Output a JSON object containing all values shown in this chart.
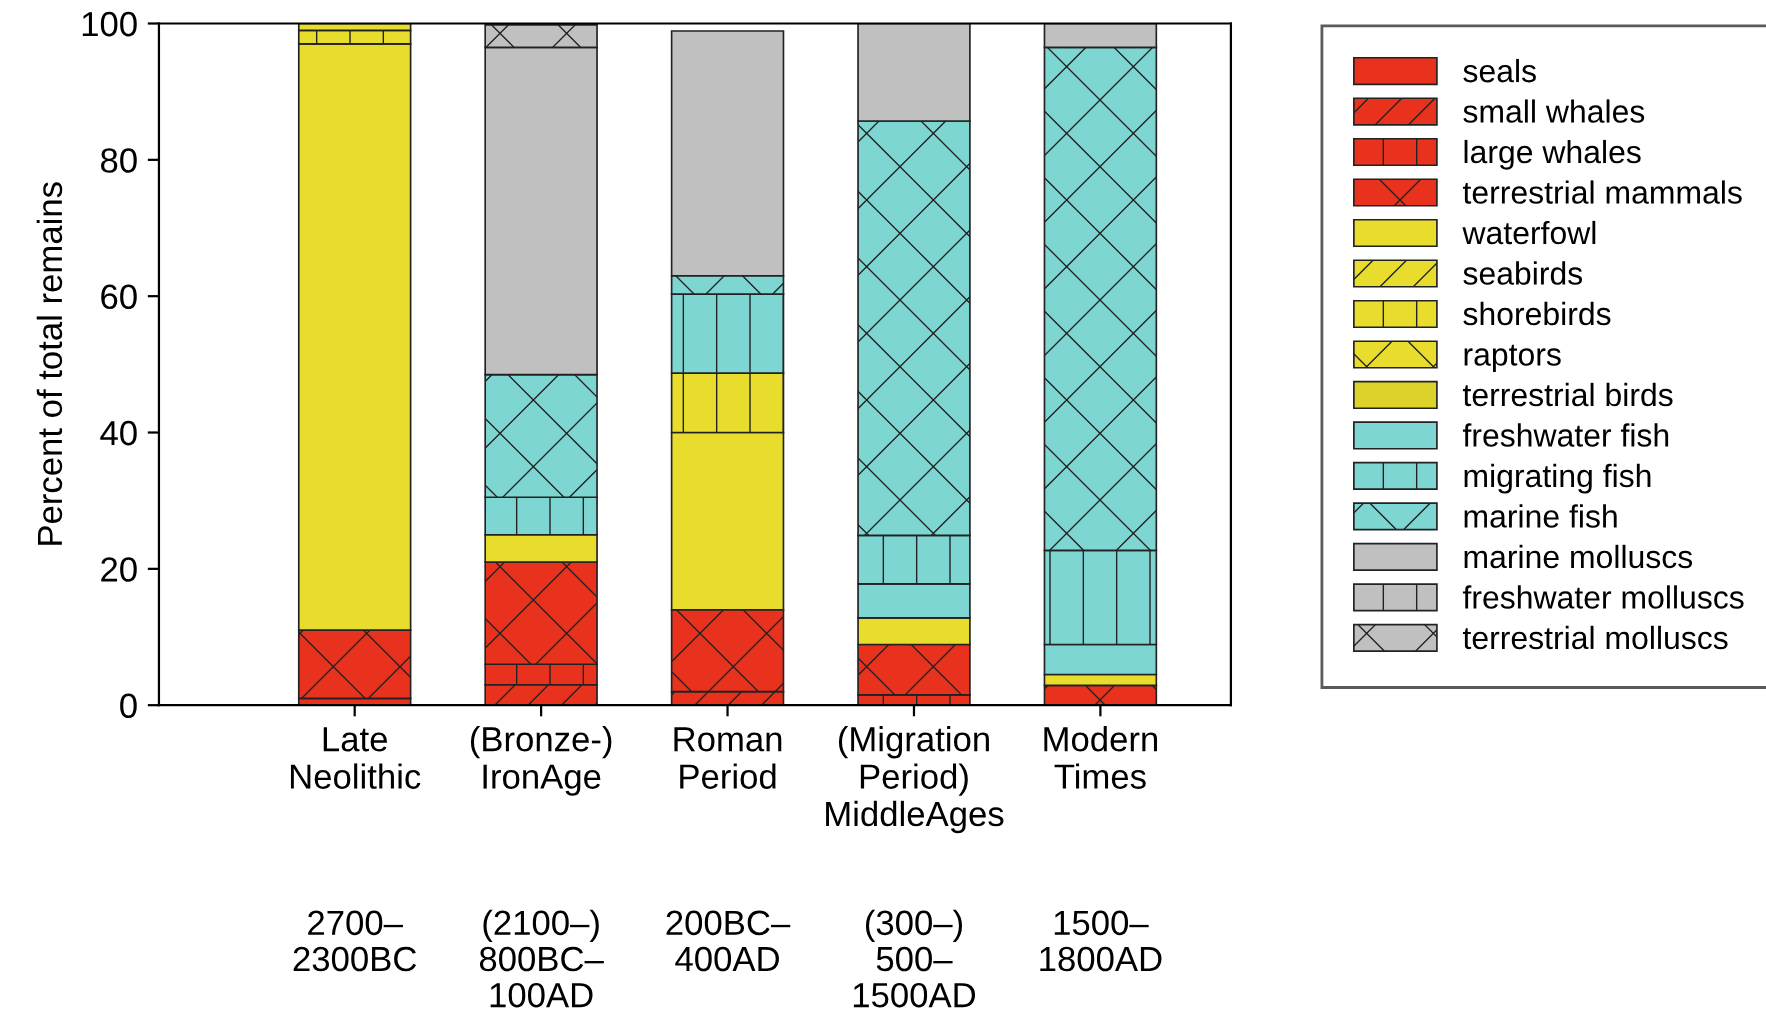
{
  "chart_data": {
    "type": "bar",
    "stacked": true,
    "ylabel": "Percent of total remains",
    "categories": [
      "Late\nNeolithic",
      "(Bronze-)\nIronAge",
      "Roman\nPeriod",
      "(Migration\nPeriod)\nMiddleAges",
      "Modern\nTimes"
    ],
    "series": [
      {
        "name": "seals",
        "color": "#e8321e",
        "values": [
          0,
          0,
          0,
          0,
          0
        ]
      },
      {
        "name": "small whales",
        "color": "#e8321e",
        "values": [
          0,
          3,
          2,
          0,
          0
        ]
      },
      {
        "name": "large whales",
        "color": "#e8321e",
        "values": [
          1,
          3,
          0,
          1.5,
          0
        ]
      },
      {
        "name": "terrestrial mammals",
        "color": "#e8321e",
        "values": [
          10,
          15,
          12,
          7.4,
          2.9
        ]
      },
      {
        "name": "waterfowl",
        "color": "#e8dd2c",
        "values": [
          86,
          4,
          26,
          3.9,
          1.6
        ]
      },
      {
        "name": "seabirds",
        "color": "#e8dd2c",
        "values": [
          0,
          0,
          0,
          0,
          0
        ]
      },
      {
        "name": "shorebirds",
        "color": "#e8dd2c",
        "values": [
          2,
          0,
          8.7,
          0,
          0
        ]
      },
      {
        "name": "raptors",
        "color": "#e8dd2c",
        "values": [
          1,
          0,
          0,
          0,
          0
        ]
      },
      {
        "name": "terrestrial birds",
        "color": "#ddd22a",
        "values": [
          0,
          0,
          0,
          0,
          0
        ]
      },
      {
        "name": "freshwater fish",
        "color": "#7ed6d2",
        "values": [
          0,
          0,
          0,
          5,
          4.4
        ]
      },
      {
        "name": "migrating fish",
        "color": "#7ed6d2",
        "values": [
          0,
          5.5,
          11.6,
          7.1,
          13.8
        ]
      },
      {
        "name": "marine fish",
        "color": "#7ed6d2",
        "values": [
          0,
          18,
          2.7,
          60.8,
          73.8
        ]
      },
      {
        "name": "marine molluscs",
        "color": "#c0c0c0",
        "values": [
          0,
          48,
          35.9,
          14.3,
          3.5
        ]
      },
      {
        "name": "freshwater molluscs",
        "color": "#c0c0c0",
        "values": [
          0,
          0,
          0,
          0,
          0
        ]
      },
      {
        "name": "terrestrial molluscs",
        "color": "#c0c0c0",
        "values": [
          0,
          3.3,
          0,
          0,
          0
        ]
      }
    ],
    "ylim": [
      0,
      100
    ],
    "yticks": [
      0,
      20,
      40,
      60,
      80,
      100
    ],
    "grid": false,
    "legend": "right",
    "annotations": [
      "2700–\n2300BC",
      "(2100–)\n800BC–\n100AD",
      "200BC–\n400AD",
      "(300–)\n500–\n1500AD",
      "1500–\n1800AD"
    ]
  }
}
